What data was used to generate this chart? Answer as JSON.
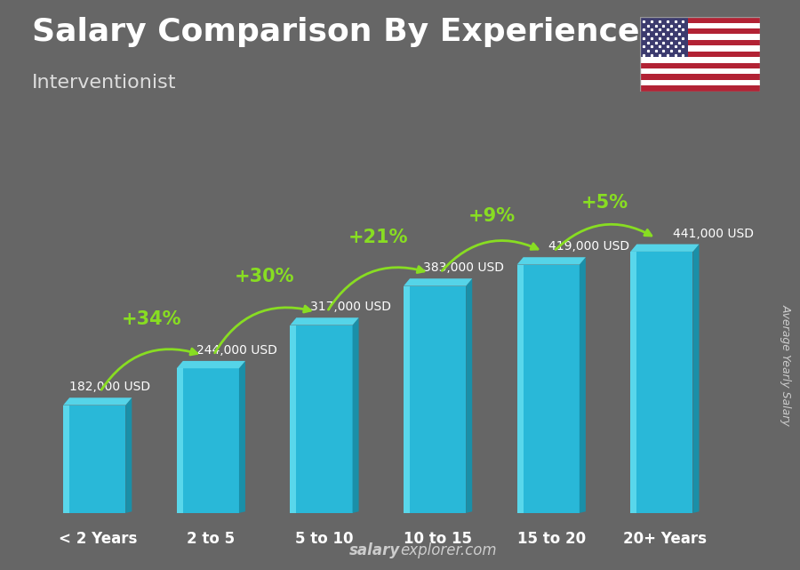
{
  "title": "Salary Comparison By Experience",
  "subtitle": "Interventionist",
  "ylabel": "Average Yearly Salary",
  "footer": "salaryexplorer.com",
  "footer_bold": "salary",
  "categories": [
    "< 2 Years",
    "2 to 5",
    "5 to 10",
    "10 to 15",
    "15 to 20",
    "20+ Years"
  ],
  "values": [
    182000,
    244000,
    317000,
    383000,
    419000,
    441000
  ],
  "labels": [
    "182,000 USD",
    "244,000 USD",
    "317,000 USD",
    "383,000 USD",
    "419,000 USD",
    "441,000 USD"
  ],
  "pct_changes": [
    "+34%",
    "+30%",
    "+21%",
    "+9%",
    "+5%"
  ],
  "background_color": "#666666",
  "bar_color_main": "#29b8d8",
  "bar_color_light": "#55d4e8",
  "bar_color_dark": "#1a8fa8",
  "bar_highlight": "#66e0f0",
  "title_color": "#ffffff",
  "subtitle_color": "#dddddd",
  "label_color": "#ffffff",
  "pct_color": "#88dd22",
  "arrow_color": "#88dd22",
  "footer_color": "#cccccc",
  "title_fontsize": 26,
  "subtitle_fontsize": 16,
  "label_fontsize": 10,
  "pct_fontsize": 15,
  "cat_fontsize": 12,
  "ylabel_fontsize": 9
}
